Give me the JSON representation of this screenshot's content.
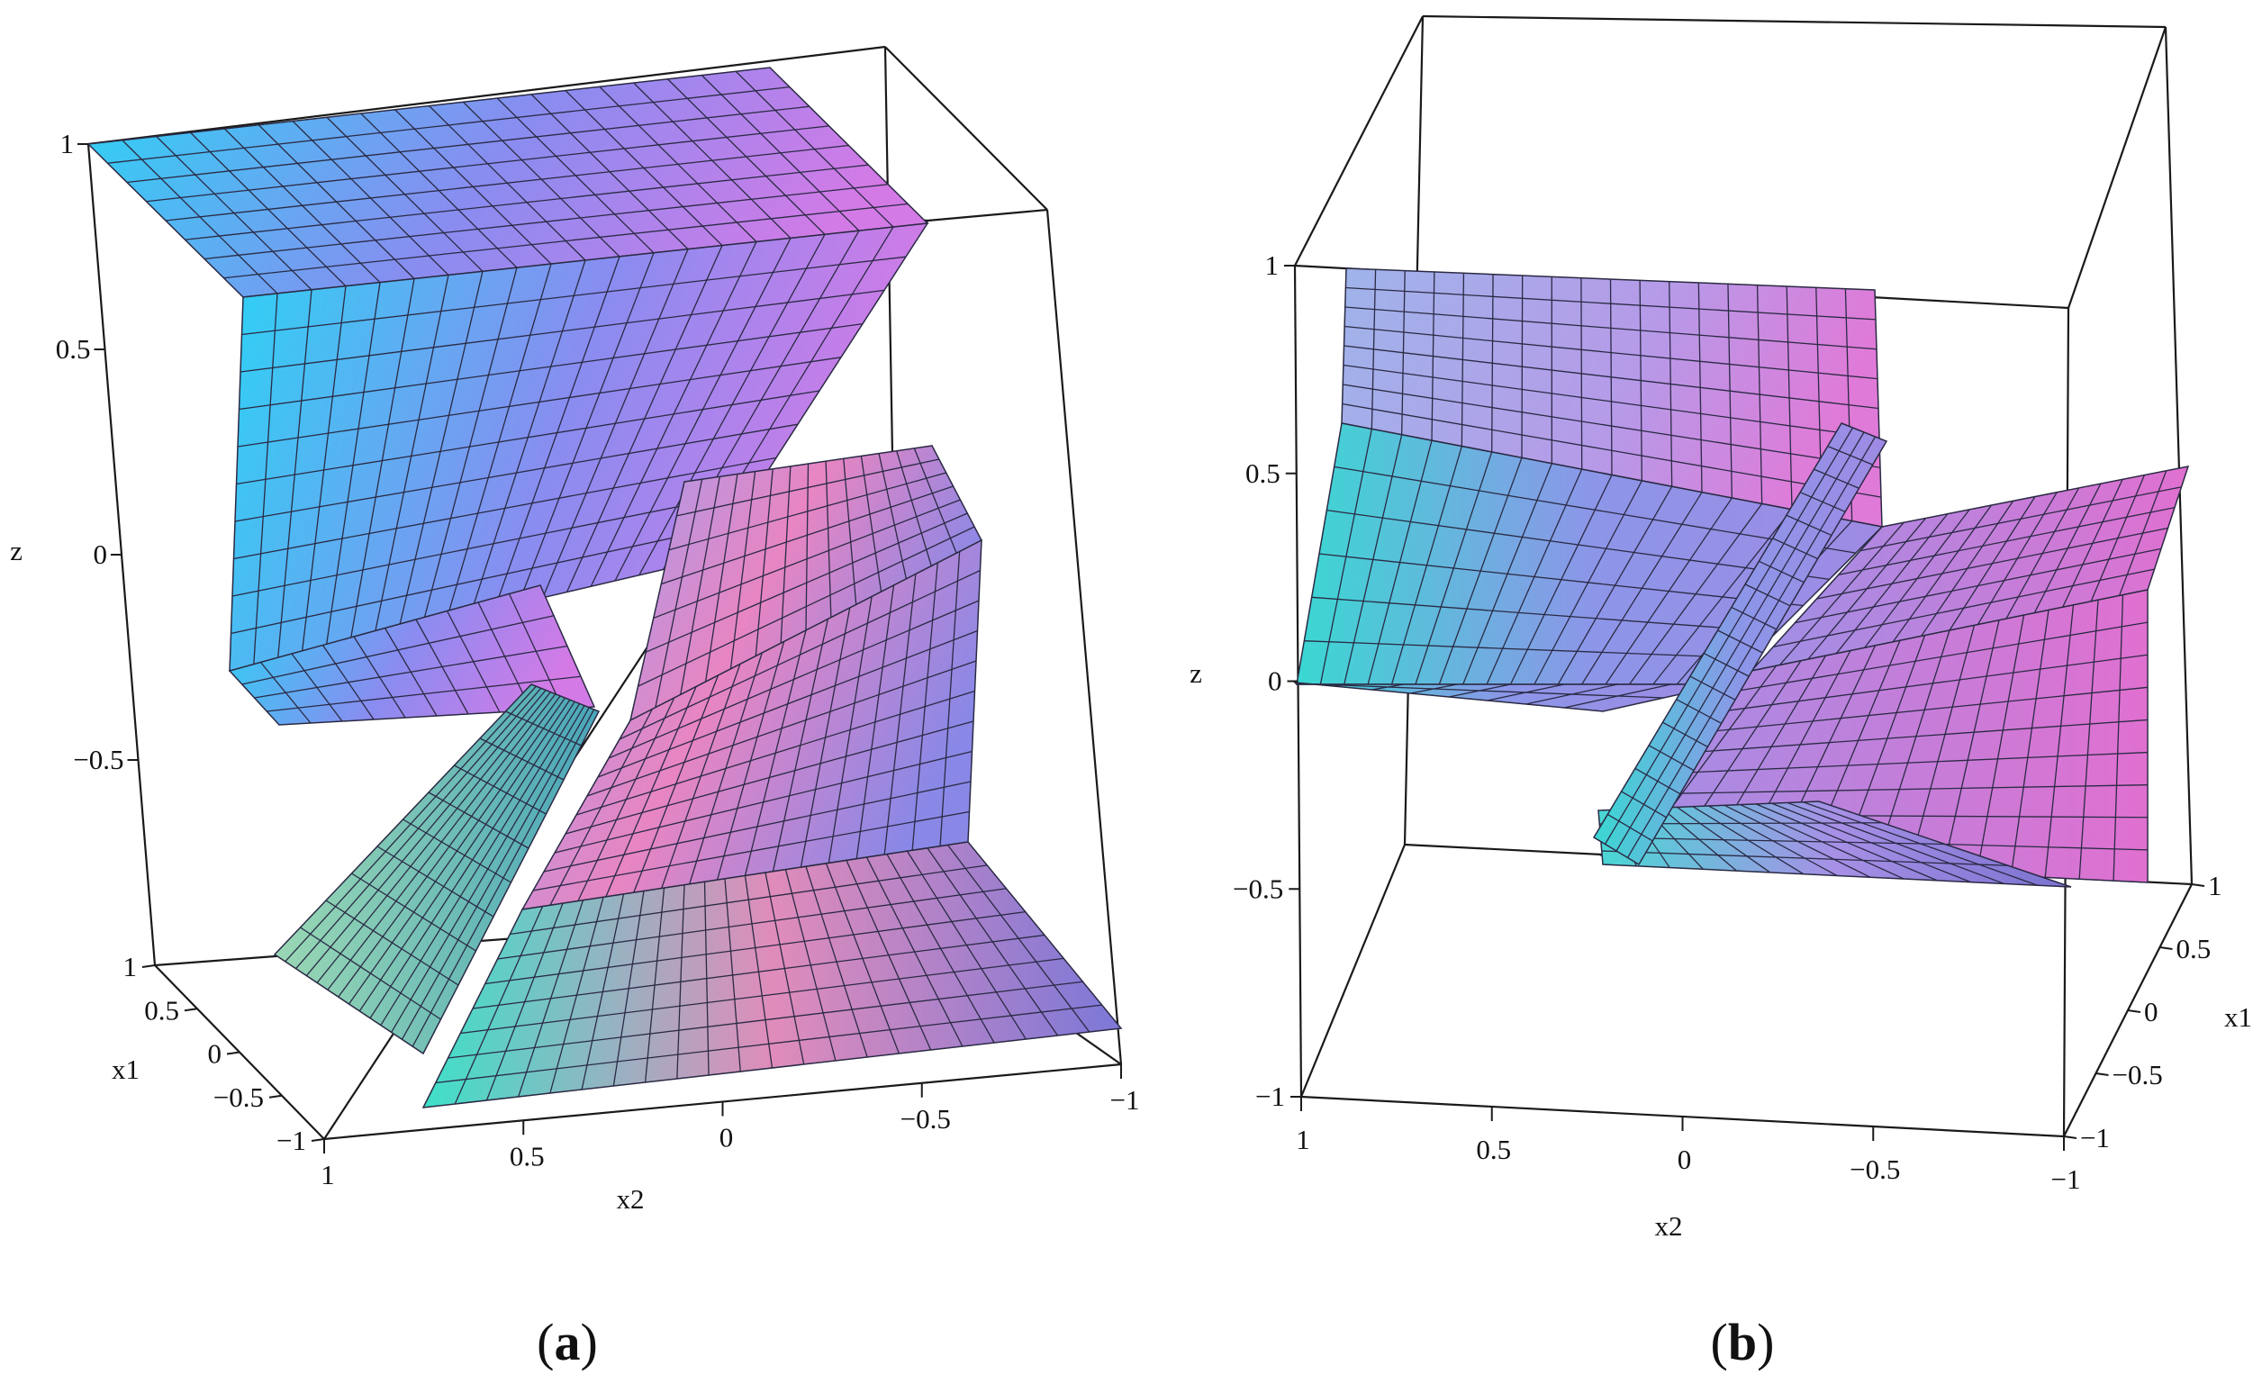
{
  "chart_data": [
    {
      "type": "surface3d",
      "panel_label": "a",
      "xlabel": "x2",
      "ylabel": "x1",
      "zlabel": "z",
      "x_ticks": [
        "1",
        "0.5",
        "0",
        "−0.5",
        "−1"
      ],
      "y_ticks": [
        "1",
        "0.5",
        "0",
        "−0.5",
        "−1"
      ],
      "z_ticks": [
        "1",
        "0.5",
        "0",
        "−0.5"
      ],
      "xlim": [
        -1,
        1
      ],
      "ylim": [
        -1,
        1
      ],
      "zlim": [
        -1,
        1
      ],
      "colormap": [
        "#22d3ee",
        "#8b8cf2",
        "#e879c8",
        "#ef6e9c"
      ]
    },
    {
      "type": "surface3d",
      "panel_label": "b",
      "xlabel": "x2",
      "ylabel": "x1",
      "zlabel": "z",
      "x_ticks": [
        "1",
        "0.5",
        "0",
        "−0.5",
        "−1"
      ],
      "y_ticks": [
        "1",
        "0.5",
        "0",
        "−0.5",
        "−1"
      ],
      "z_ticks": [
        "1",
        "0.5",
        "0",
        "−0.5",
        "−1"
      ],
      "xlim": [
        -1,
        1
      ],
      "ylim": [
        -1,
        1
      ],
      "zlim": [
        -1,
        1
      ],
      "colormap": [
        "#2ee0d8",
        "#8e8ef0",
        "#d978d8",
        "#e060c8"
      ]
    }
  ]
}
